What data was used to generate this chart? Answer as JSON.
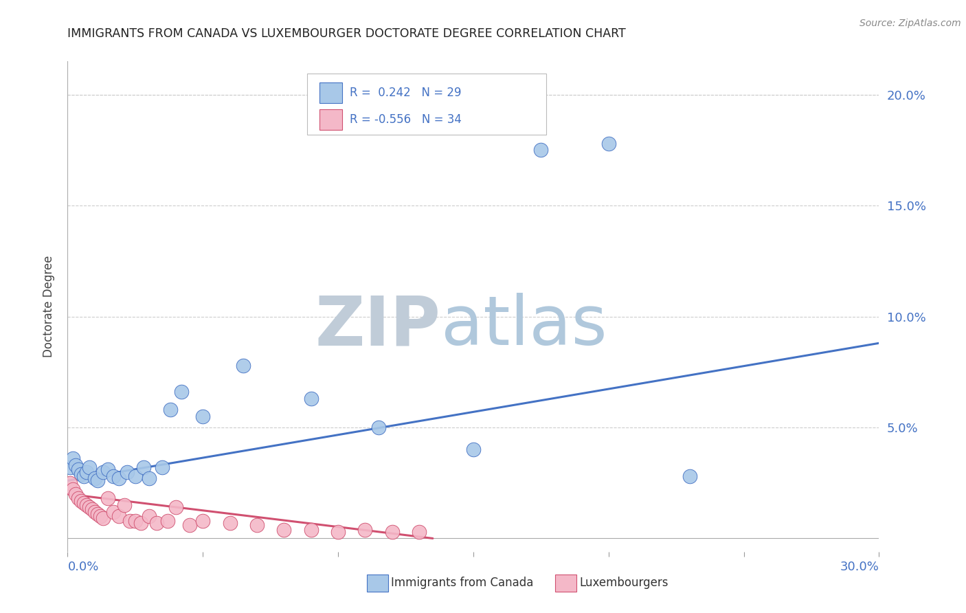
{
  "title": "IMMIGRANTS FROM CANADA VS LUXEMBOURGER DOCTORATE DEGREE CORRELATION CHART",
  "source": "Source: ZipAtlas.com",
  "ylabel": "Doctorate Degree",
  "right_yticks": [
    0.0,
    0.05,
    0.1,
    0.15,
    0.2
  ],
  "right_yticklabels": [
    "",
    "5.0%",
    "10.0%",
    "15.0%",
    "20.0%"
  ],
  "xlim": [
    0.0,
    0.3
  ],
  "ylim": [
    -0.006,
    0.215
  ],
  "legend_color1": "#A8C8E8",
  "legend_color2": "#F4B8C8",
  "line_color1": "#4472C4",
  "line_color2": "#D05070",
  "canada_x": [
    0.001,
    0.002,
    0.003,
    0.004,
    0.005,
    0.006,
    0.007,
    0.008,
    0.01,
    0.011,
    0.013,
    0.015,
    0.017,
    0.019,
    0.022,
    0.025,
    0.028,
    0.03,
    0.035,
    0.038,
    0.042,
    0.05,
    0.065,
    0.09,
    0.115,
    0.15,
    0.175,
    0.2,
    0.23
  ],
  "canada_y": [
    0.032,
    0.036,
    0.033,
    0.031,
    0.029,
    0.028,
    0.03,
    0.032,
    0.027,
    0.026,
    0.03,
    0.031,
    0.028,
    0.027,
    0.03,
    0.028,
    0.032,
    0.027,
    0.032,
    0.058,
    0.066,
    0.055,
    0.078,
    0.063,
    0.05,
    0.04,
    0.175,
    0.178,
    0.028
  ],
  "lux_x": [
    0.001,
    0.002,
    0.003,
    0.004,
    0.005,
    0.006,
    0.007,
    0.008,
    0.009,
    0.01,
    0.011,
    0.012,
    0.013,
    0.015,
    0.017,
    0.019,
    0.021,
    0.023,
    0.025,
    0.027,
    0.03,
    0.033,
    0.037,
    0.04,
    0.045,
    0.05,
    0.06,
    0.07,
    0.08,
    0.09,
    0.1,
    0.11,
    0.12,
    0.13
  ],
  "lux_y": [
    0.025,
    0.022,
    0.02,
    0.018,
    0.017,
    0.016,
    0.015,
    0.014,
    0.013,
    0.012,
    0.011,
    0.01,
    0.009,
    0.018,
    0.012,
    0.01,
    0.015,
    0.008,
    0.008,
    0.007,
    0.01,
    0.007,
    0.008,
    0.014,
    0.006,
    0.008,
    0.007,
    0.006,
    0.004,
    0.004,
    0.003,
    0.004,
    0.003,
    0.003
  ],
  "canada_trend_x": [
    0.0,
    0.3
  ],
  "canada_trend_y": [
    0.026,
    0.088
  ],
  "lux_trend_x": [
    0.0,
    0.135
  ],
  "lux_trend_y": [
    0.02,
    0.0
  ]
}
